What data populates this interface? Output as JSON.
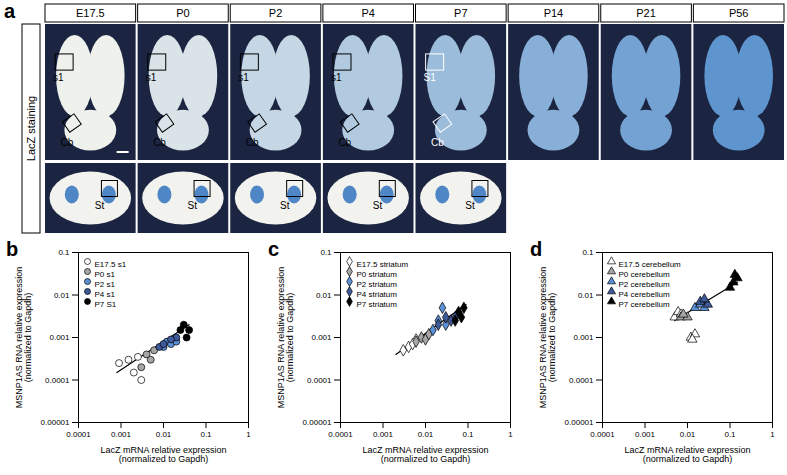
{
  "panel_a": {
    "label": "a",
    "row_label": "LacZ staining",
    "columns": [
      "E17.5",
      "P0",
      "P2",
      "P4",
      "P7",
      "P14",
      "P21",
      "P56"
    ],
    "top_row": [
      {
        "column": "E17.5",
        "labels": [
          "s1",
          "Cb"
        ]
      },
      {
        "column": "P0",
        "labels": [
          "s1",
          "Cb"
        ]
      },
      {
        "column": "P2",
        "labels": [
          "s1",
          "Cb"
        ]
      },
      {
        "column": "P4",
        "labels": [
          "s1",
          "Cb"
        ]
      },
      {
        "column": "P7",
        "labels": [
          "S1",
          "Cb"
        ]
      }
    ],
    "bottom_row": [
      {
        "column": "E17.5",
        "labels": [
          "St"
        ]
      },
      {
        "column": "P0",
        "labels": [
          "St"
        ]
      },
      {
        "column": "P2",
        "labels": [
          "St"
        ]
      },
      {
        "column": "P4",
        "labels": [
          "St"
        ]
      },
      {
        "column": "P7",
        "labels": [
          "St"
        ]
      }
    ]
  },
  "chart_data": [
    {
      "type": "scatter",
      "title": "b",
      "log": true,
      "marker": "circle",
      "legend": "top-left",
      "x_label": "LacZ mRNA relative expression (normalized to Gapdh)",
      "y_label": "MSNP1AS RNA relative expression (normalized to Gapdh)",
      "xlim": [
        0.0001,
        1
      ],
      "xticks": [
        0.0001,
        0.001,
        0.01,
        0.1,
        1
      ],
      "ylim": [
        1e-05,
        0.1
      ],
      "yticks": [
        1e-05,
        0.0001,
        0.001,
        0.01,
        0.1
      ],
      "series": [
        {
          "name": "E17.5 s1",
          "color": "#ffffff",
          "x": [
            0.0009,
            0.0015,
            0.002,
            0.003,
            0.0025
          ],
          "values": [
            0.00025,
            0.0003,
            0.00015,
            0.0001,
            0.00035
          ]
        },
        {
          "name": "P0 s1",
          "color": "#a6a6a6",
          "x": [
            0.003,
            0.004,
            0.005,
            0.006
          ],
          "values": [
            0.0002,
            0.0004,
            0.0003,
            0.0005
          ]
        },
        {
          "name": "P2 s1",
          "color": "#5b8fd6",
          "x": [
            0.01,
            0.012,
            0.015,
            0.02
          ],
          "values": [
            0.0006,
            0.0008,
            0.0007,
            0.0008
          ]
        },
        {
          "name": "P4 s1",
          "color": "#3e5a99",
          "x": [
            0.008,
            0.01,
            0.02,
            0.015
          ],
          "values": [
            0.0006,
            0.0007,
            0.001,
            0.0009
          ]
        },
        {
          "name": "P7 S1",
          "color": "#000000",
          "x": [
            0.025,
            0.03,
            0.04,
            0.035
          ],
          "values": [
            0.0015,
            0.002,
            0.0015,
            0.001
          ]
        }
      ],
      "trend": {
        "x": [
          0.0008,
          0.04
        ],
        "values": [
          0.00015,
          0.002
        ]
      }
    },
    {
      "type": "scatter",
      "title": "c",
      "log": true,
      "marker": "diamond",
      "legend": "top-left",
      "x_label": "LacZ mRNA relative expression (normalized to Gapdh)",
      "y_label": "MSNP1AS RNA relative expression (normalized to Gapdh)",
      "xlim": [
        0.0001,
        1
      ],
      "xticks": [
        0.0001,
        0.001,
        0.01,
        0.1,
        1
      ],
      "ylim": [
        1e-05,
        0.1
      ],
      "yticks": [
        1e-05,
        0.0001,
        0.001,
        0.01,
        0.1
      ],
      "series": [
        {
          "name": "E17.5 striatum",
          "color": "#ffffff",
          "x": [
            0.003,
            0.004,
            0.005,
            0.006
          ],
          "values": [
            0.0005,
            0.0006,
            0.0007,
            0.0009
          ]
        },
        {
          "name": "P0 striatum",
          "color": "#a6a6a6",
          "x": [
            0.006,
            0.008,
            0.01,
            0.012
          ],
          "values": [
            0.0008,
            0.001,
            0.0009,
            0.0012
          ]
        },
        {
          "name": "P2 striatum",
          "color": "#5b8fd6",
          "x": [
            0.015,
            0.02,
            0.025,
            0.03
          ],
          "values": [
            0.0015,
            0.0025,
            0.005,
            0.002
          ]
        },
        {
          "name": "P4 striatum",
          "color": "#3e5a99",
          "x": [
            0.02,
            0.03,
            0.04,
            0.05
          ],
          "values": [
            0.002,
            0.003,
            0.0025,
            0.003
          ]
        },
        {
          "name": "P7 striatum",
          "color": "#000000",
          "x": [
            0.05,
            0.06,
            0.08,
            0.07
          ],
          "values": [
            0.0025,
            0.004,
            0.005,
            0.003
          ]
        }
      ],
      "trend": {
        "x": [
          0.002,
          0.09
        ],
        "values": [
          0.0004,
          0.006
        ]
      }
    },
    {
      "type": "scatter",
      "title": "d",
      "log": true,
      "marker": "triangle",
      "legend": "top-left",
      "x_label": "LacZ mRNA relative expression (normalized to Gapdh)",
      "y_label": "MSNP1AS RNA relative expression (normalized to Gapdh)",
      "xlim": [
        0.0001,
        1
      ],
      "xticks": [
        0.0001,
        0.001,
        0.01,
        0.1,
        1
      ],
      "ylim": [
        1e-05,
        0.1
      ],
      "yticks": [
        1e-05,
        0.0001,
        0.001,
        0.01,
        0.1
      ],
      "series": [
        {
          "name": "E17.5 cerebellum",
          "color": "#ffffff",
          "x": [
            0.005,
            0.006,
            0.007,
            0.012,
            0.015,
            0.013
          ],
          "values": [
            0.003,
            0.004,
            0.0035,
            0.001,
            0.0012,
            0.0009
          ]
        },
        {
          "name": "P0 cerebellum",
          "color": "#a6a6a6",
          "x": [
            0.007,
            0.01,
            0.008
          ],
          "values": [
            0.003,
            0.003,
            0.0035
          ]
        },
        {
          "name": "P2 cerebellum",
          "color": "#5b8fd6",
          "x": [
            0.015,
            0.02,
            0.025
          ],
          "values": [
            0.005,
            0.006,
            0.005
          ]
        },
        {
          "name": "P4 cerebellum",
          "color": "#3e5a99",
          "x": [
            0.02,
            0.03,
            0.025
          ],
          "values": [
            0.007,
            0.006,
            0.008
          ]
        },
        {
          "name": "P7 cerebellum",
          "color": "#000000",
          "x": [
            0.1,
            0.12,
            0.15,
            0.13
          ],
          "values": [
            0.015,
            0.02,
            0.025,
            0.03
          ]
        }
      ],
      "trend": {
        "x": [
          0.005,
          0.15
        ],
        "values": [
          0.0025,
          0.02
        ]
      }
    }
  ]
}
